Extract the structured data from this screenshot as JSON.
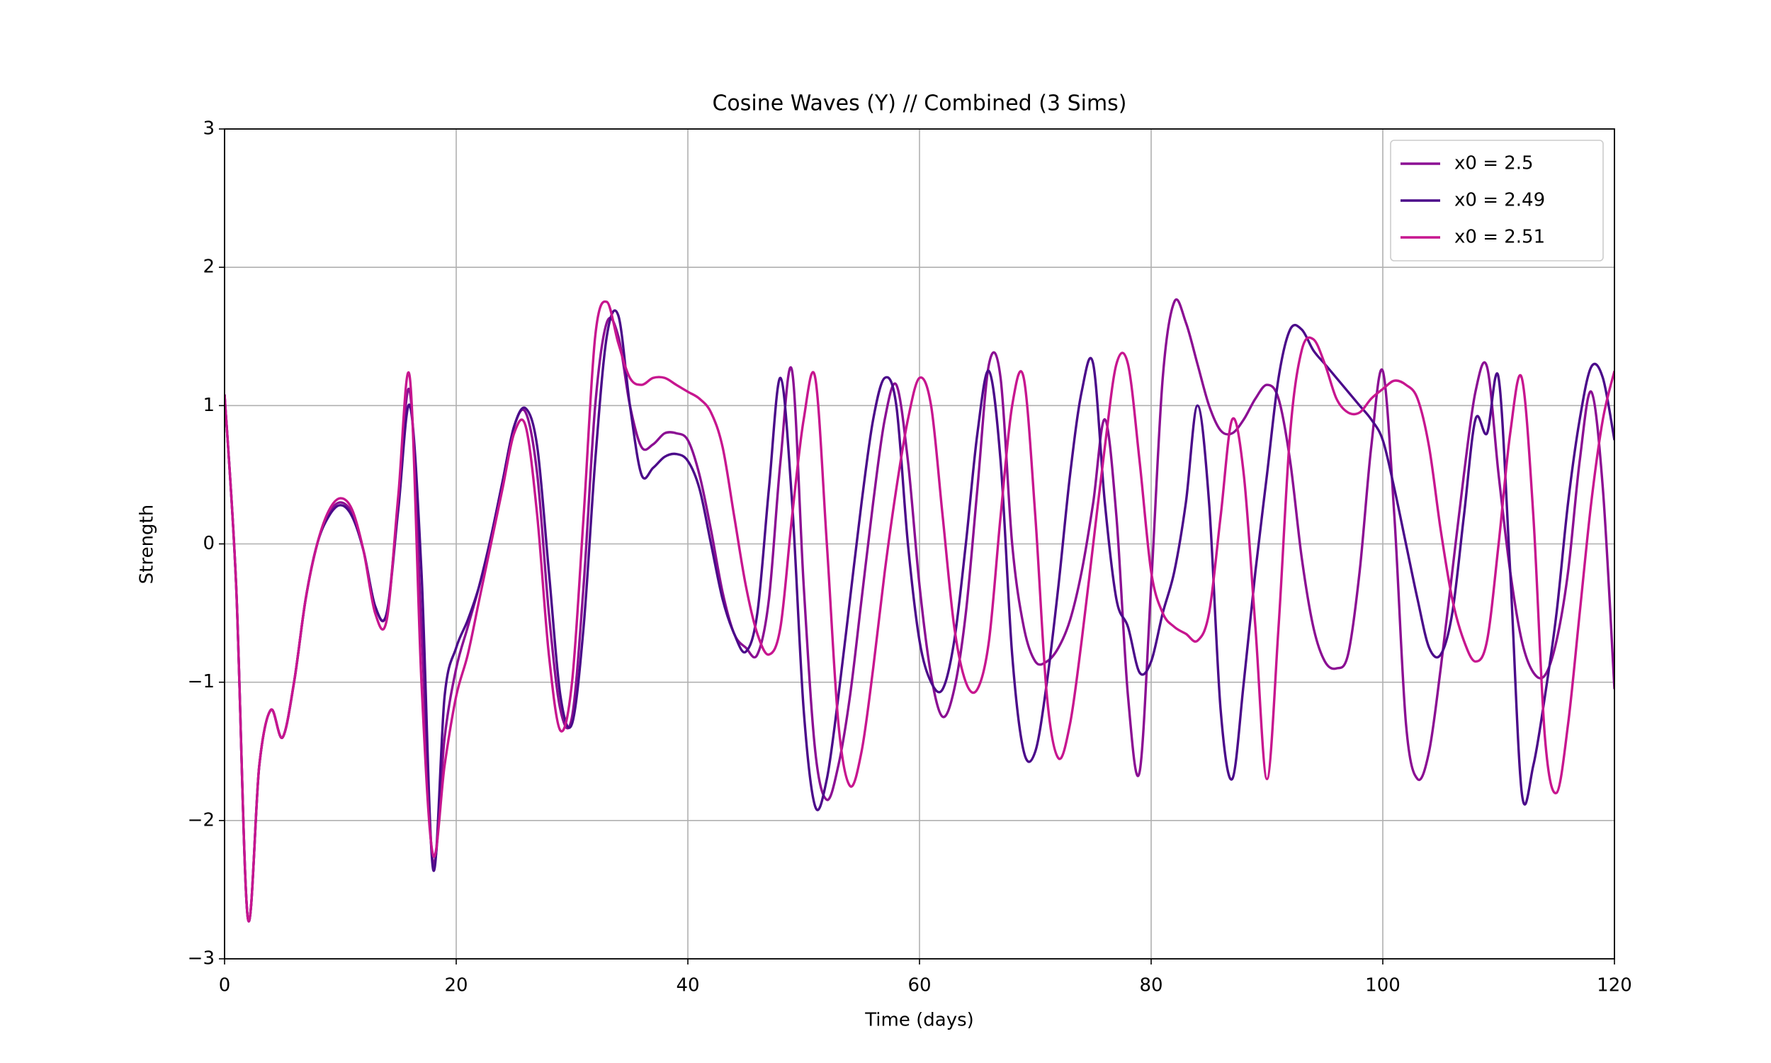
{
  "chart_data": {
    "type": "line",
    "title": "Cosine Waves (Y) // Combined (3 Sims)",
    "xlabel": "Time (days)",
    "ylabel": "Strength",
    "x": [
      0,
      1,
      2,
      3,
      4,
      5,
      6,
      7,
      8,
      9,
      10,
      11,
      12,
      13,
      14,
      15,
      16,
      17,
      18,
      19,
      20,
      21,
      22,
      23,
      24,
      25,
      26,
      27,
      28,
      29,
      30,
      31,
      32,
      33,
      34,
      35,
      36,
      37,
      38,
      39,
      40,
      41,
      42,
      43,
      44,
      45,
      46,
      47,
      48,
      49,
      50,
      51,
      52,
      53,
      54,
      55,
      56,
      57,
      58,
      59,
      60,
      61,
      62,
      63,
      64,
      65,
      66,
      67,
      68,
      69,
      70,
      71,
      72,
      73,
      74,
      75,
      76,
      77,
      78,
      79,
      80,
      81,
      82,
      83,
      84,
      85,
      86,
      87,
      88,
      89,
      90,
      91,
      92,
      93,
      94,
      95,
      96,
      97,
      98,
      99,
      100,
      101,
      102,
      103,
      104,
      105,
      106,
      107,
      108,
      109,
      110,
      111,
      112,
      113,
      114,
      115,
      116,
      117,
      118,
      119,
      120
    ],
    "series": [
      {
        "name": "x0 = 2.5",
        "color": "#8b0f93",
        "values": [
          1.08,
          -0.3,
          -2.7,
          -1.6,
          -1.2,
          -1.4,
          -1.0,
          -0.4,
          0.0,
          0.22,
          0.3,
          0.22,
          -0.05,
          -0.45,
          -0.5,
          0.3,
          1.1,
          -0.6,
          -2.3,
          -1.4,
          -0.9,
          -0.6,
          -0.3,
          0.05,
          0.45,
          0.85,
          0.95,
          0.5,
          -0.5,
          -1.2,
          -1.25,
          -0.3,
          1.0,
          1.6,
          1.5,
          1.0,
          0.7,
          0.72,
          0.8,
          0.8,
          0.75,
          0.5,
          0.1,
          -0.35,
          -0.65,
          -0.75,
          -0.8,
          -0.4,
          0.6,
          1.25,
          -0.3,
          -1.5,
          -1.85,
          -1.6,
          -1.1,
          -0.4,
          0.3,
          0.9,
          1.15,
          0.6,
          -0.3,
          -0.95,
          -1.25,
          -1.05,
          -0.5,
          0.4,
          1.3,
          1.2,
          0.0,
          -0.6,
          -0.85,
          -0.85,
          -0.75,
          -0.55,
          -0.2,
          0.3,
          0.9,
          0.2,
          -1.1,
          -1.65,
          -0.3,
          1.2,
          1.75,
          1.6,
          1.3,
          1.0,
          0.82,
          0.8,
          0.9,
          1.05,
          1.15,
          1.05,
          0.6,
          -0.1,
          -0.6,
          -0.85,
          -0.9,
          -0.8,
          -0.2,
          0.7,
          1.25,
          0.2,
          -1.3,
          -1.7,
          -1.5,
          -0.9,
          -0.2,
          0.5,
          1.1,
          1.28,
          0.5,
          -0.2,
          -0.7,
          -0.93,
          -0.95,
          -0.7,
          -0.2,
          0.6,
          1.1,
          0.4,
          -1.05
        ]
      },
      {
        "name": "x0 = 2.49",
        "color": "#4b0a8a",
        "values": [
          1.08,
          -0.3,
          -2.7,
          -1.6,
          -1.2,
          -1.4,
          -1.0,
          -0.4,
          0.0,
          0.2,
          0.28,
          0.2,
          -0.05,
          -0.45,
          -0.5,
          0.25,
          1.0,
          -0.2,
          -2.35,
          -1.1,
          -0.75,
          -0.55,
          -0.3,
          0.05,
          0.45,
          0.85,
          0.98,
          0.7,
          -0.2,
          -1.1,
          -1.3,
          -0.6,
          0.6,
          1.5,
          1.65,
          1.0,
          0.5,
          0.55,
          0.63,
          0.65,
          0.6,
          0.4,
          0.0,
          -0.4,
          -0.65,
          -0.78,
          -0.5,
          0.4,
          1.2,
          0.3,
          -1.2,
          -1.9,
          -1.7,
          -1.1,
          -0.4,
          0.3,
          0.9,
          1.2,
          1.0,
          0.0,
          -0.7,
          -1.0,
          -1.05,
          -0.7,
          0.0,
          0.8,
          1.25,
          0.6,
          -0.8,
          -1.5,
          -1.5,
          -1.0,
          -0.3,
          0.5,
          1.1,
          1.3,
          0.3,
          -0.4,
          -0.6,
          -0.93,
          -0.85,
          -0.5,
          -0.2,
          0.3,
          1.0,
          0.3,
          -1.2,
          -1.7,
          -1.0,
          -0.2,
          0.5,
          1.2,
          1.55,
          1.55,
          1.4,
          1.3,
          1.2,
          1.1,
          1.0,
          0.9,
          0.75,
          0.4,
          0.0,
          -0.4,
          -0.75,
          -0.8,
          -0.5,
          0.2,
          0.9,
          0.8,
          1.2,
          -0.2,
          -1.8,
          -1.6,
          -1.1,
          -0.5,
          0.3,
          0.9,
          1.28,
          1.2,
          0.75
        ]
      },
      {
        "name": "x0 = 2.51",
        "color": "#c7168f",
        "values": [
          1.08,
          -0.3,
          -2.7,
          -1.6,
          -1.2,
          -1.4,
          -1.0,
          -0.4,
          0.0,
          0.24,
          0.33,
          0.25,
          -0.05,
          -0.5,
          -0.55,
          0.35,
          1.2,
          -1.0,
          -2.25,
          -1.6,
          -1.1,
          -0.8,
          -0.4,
          0.0,
          0.4,
          0.8,
          0.85,
          0.2,
          -0.8,
          -1.35,
          -1.0,
          0.2,
          1.5,
          1.75,
          1.45,
          1.2,
          1.15,
          1.2,
          1.2,
          1.15,
          1.1,
          1.05,
          0.95,
          0.7,
          0.2,
          -0.3,
          -0.65,
          -0.8,
          -0.6,
          0.2,
          0.9,
          1.2,
          0.0,
          -1.3,
          -1.75,
          -1.5,
          -0.9,
          -0.2,
          0.4,
          0.9,
          1.2,
          1.0,
          0.2,
          -0.6,
          -1.0,
          -1.05,
          -0.7,
          0.2,
          1.0,
          1.2,
          0.2,
          -1.1,
          -1.55,
          -1.3,
          -0.7,
          0.0,
          0.7,
          1.3,
          1.3,
          0.6,
          -0.2,
          -0.5,
          -0.6,
          -0.65,
          -0.7,
          -0.5,
          0.2,
          0.9,
          0.5,
          -0.6,
          -1.7,
          -0.6,
          0.8,
          1.4,
          1.48,
          1.3,
          1.05,
          0.95,
          0.95,
          1.05,
          1.12,
          1.18,
          1.15,
          1.05,
          0.7,
          0.1,
          -0.4,
          -0.7,
          -0.85,
          -0.7,
          0.0,
          0.8,
          1.2,
          0.2,
          -1.4,
          -1.8,
          -1.3,
          -0.5,
          0.3,
          0.9,
          1.25
        ]
      }
    ],
    "xlim": [
      0,
      120
    ],
    "xticks": [
      0,
      20,
      40,
      60,
      80,
      100,
      120
    ],
    "ylim": [
      -3,
      3
    ],
    "yticks": [
      {
        "value": -3,
        "label": "−3"
      },
      {
        "value": -2,
        "label": "−2"
      },
      {
        "value": -1,
        "label": "−1"
      },
      0,
      1,
      2,
      3
    ],
    "grid": true,
    "legend": "upper right"
  }
}
